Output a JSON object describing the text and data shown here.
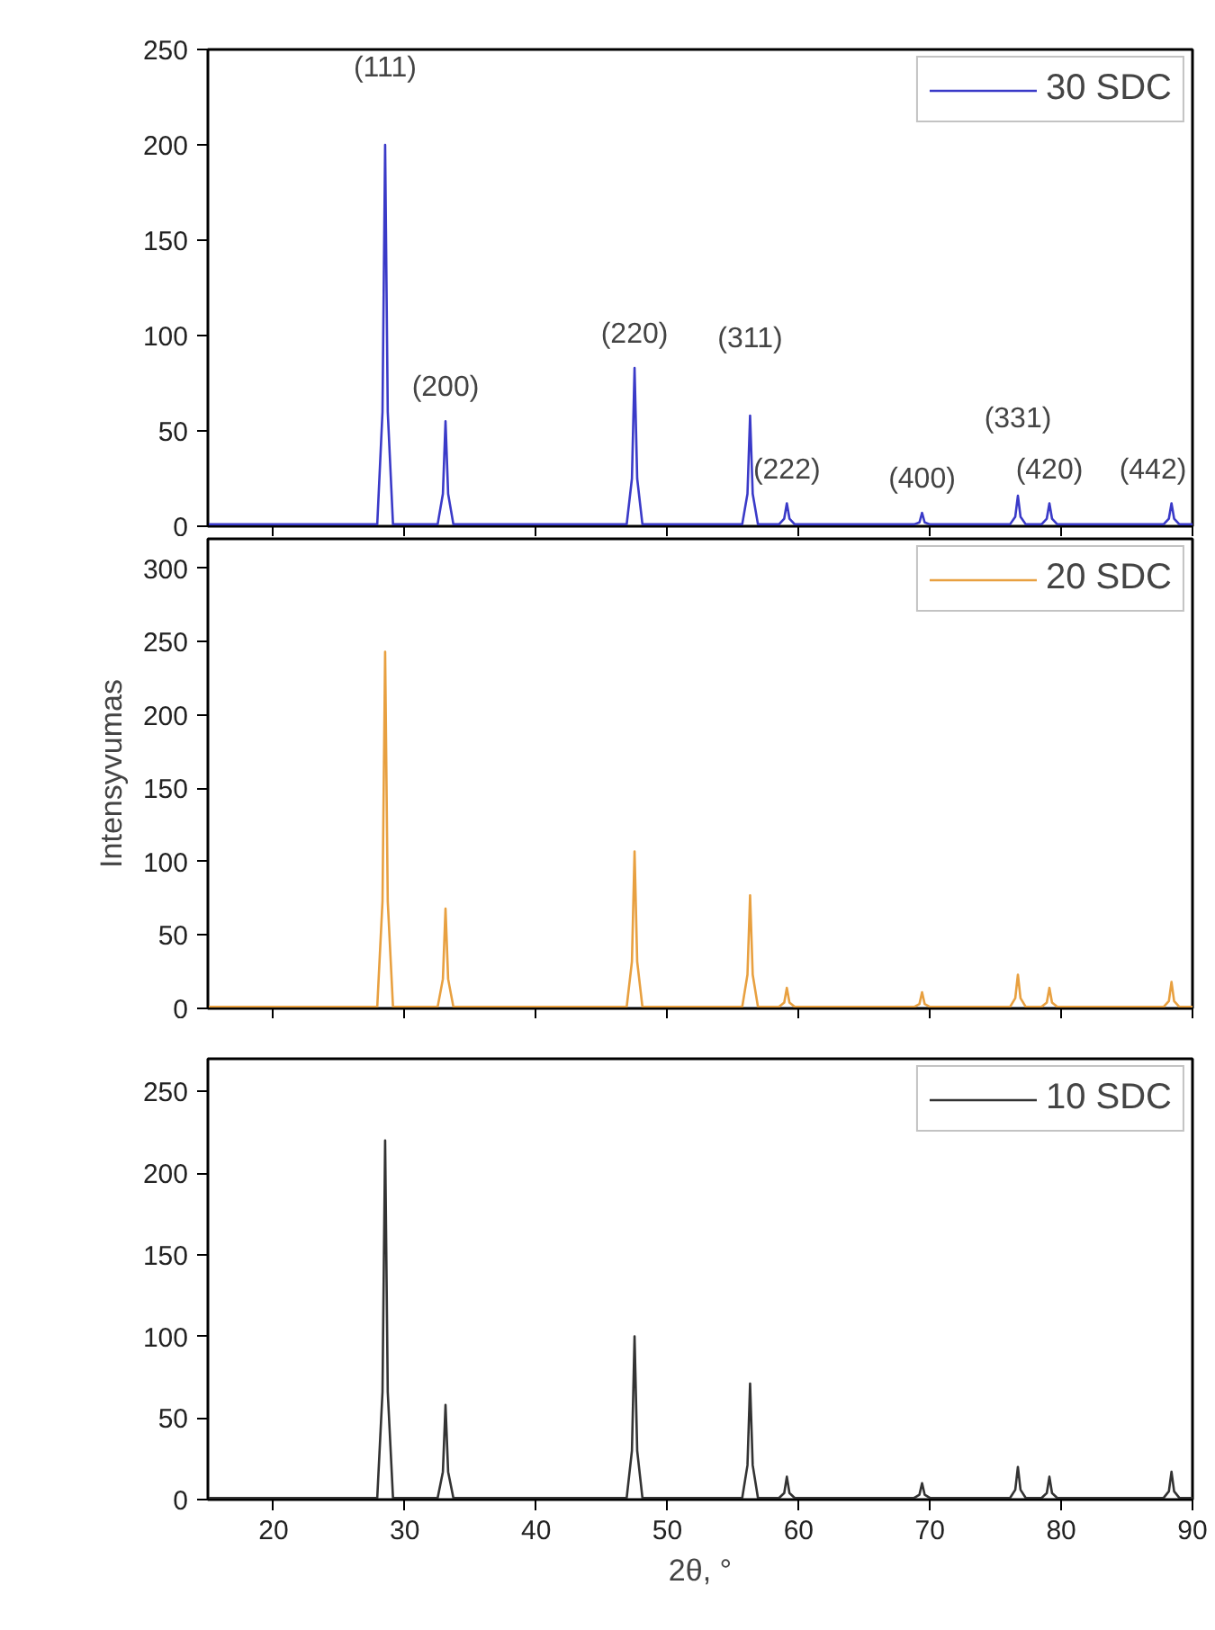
{
  "chart_data": [
    {
      "type": "line",
      "x": [
        15,
        27.9,
        28.3,
        28.5,
        28.7,
        29.1,
        32.5,
        32.9,
        33.1,
        33.3,
        33.7,
        46.9,
        47.3,
        47.5,
        47.7,
        48.1,
        55.7,
        56.1,
        56.3,
        56.5,
        56.9,
        58.5,
        58.9,
        59.1,
        59.3,
        59.7,
        68.8,
        69.2,
        69.4,
        69.6,
        70.0,
        76.1,
        76.5,
        76.7,
        76.9,
        77.3,
        78.5,
        78.9,
        79.1,
        79.3,
        79.7,
        87.8,
        88.2,
        88.4,
        88.6,
        89.0,
        90
      ],
      "series": [
        {
          "name": "30 SDC",
          "color": "#3a3ac8",
          "values": [
            1,
            1,
            60,
            200,
            60,
            1,
            1,
            17,
            55,
            17,
            1,
            1,
            25,
            83,
            25,
            1,
            1,
            17,
            58,
            17,
            1,
            1,
            4,
            12,
            4,
            1,
            1,
            2,
            7,
            2,
            1,
            1,
            5,
            16,
            5,
            1,
            1,
            4,
            12,
            4,
            1,
            1,
            4,
            12,
            4,
            1,
            1
          ]
        }
      ],
      "xlim": [
        15,
        90
      ],
      "xticks": [
        20,
        30,
        40,
        50,
        60,
        70,
        80,
        90
      ],
      "ylim": [
        0,
        250
      ],
      "yticks": [
        0,
        50,
        100,
        150,
        200,
        250
      ],
      "tick_labels": "y",
      "legend": "top right",
      "grid": false,
      "annotations": [
        {
          "text": "(111)",
          "x": 28.5,
          "y": 200
        },
        {
          "text": "(200)",
          "x": 33.1,
          "y": 55
        },
        {
          "text": "(220)",
          "x": 47.5,
          "y": 83
        },
        {
          "text": "(311)",
          "x": 56.3,
          "y": 58
        },
        {
          "text": "(222)",
          "x": 59.1,
          "y": 12
        },
        {
          "text": "(400)",
          "x": 69.4,
          "y": 7
        },
        {
          "text": "(331)",
          "x": 76.7,
          "y": 16
        },
        {
          "text": "(420)",
          "x": 79.1,
          "y": 12
        },
        {
          "text": "(442)",
          "x": 88.4,
          "y": 12
        }
      ]
    },
    {
      "type": "line",
      "x": [
        15,
        27.9,
        28.3,
        28.5,
        28.7,
        29.1,
        32.5,
        32.9,
        33.1,
        33.3,
        33.7,
        46.9,
        47.3,
        47.5,
        47.7,
        48.1,
        55.7,
        56.1,
        56.3,
        56.5,
        56.9,
        58.5,
        58.9,
        59.1,
        59.3,
        59.7,
        68.8,
        69.2,
        69.4,
        69.6,
        70.0,
        76.1,
        76.5,
        76.7,
        76.9,
        77.3,
        78.5,
        78.9,
        79.1,
        79.3,
        79.7,
        87.8,
        88.2,
        88.4,
        88.6,
        89.0,
        90
      ],
      "series": [
        {
          "name": "20 SDC",
          "color": "#e8a040",
          "values": [
            1,
            1,
            73,
            243,
            73,
            1,
            1,
            20,
            68,
            20,
            1,
            1,
            32,
            107,
            32,
            1,
            1,
            23,
            77,
            23,
            1,
            1,
            4,
            14,
            4,
            1,
            1,
            3,
            11,
            3,
            1,
            1,
            7,
            23,
            7,
            1,
            1,
            4,
            14,
            4,
            1,
            1,
            5,
            18,
            5,
            1,
            1
          ]
        }
      ],
      "xlim": [
        15,
        90
      ],
      "xticks": [
        20,
        30,
        40,
        50,
        60,
        70,
        80,
        90
      ],
      "ylim": [
        0,
        320
      ],
      "yticks": [
        0,
        50,
        100,
        150,
        200,
        250,
        300
      ],
      "tick_labels": "y",
      "legend": "top right",
      "grid": false,
      "ylabel": "Intensyvumas"
    },
    {
      "type": "line",
      "x": [
        15,
        27.9,
        28.3,
        28.5,
        28.7,
        29.1,
        32.5,
        32.9,
        33.1,
        33.3,
        33.7,
        46.9,
        47.3,
        47.5,
        47.7,
        48.1,
        55.7,
        56.1,
        56.3,
        56.5,
        56.9,
        58.5,
        58.9,
        59.1,
        59.3,
        59.7,
        68.8,
        69.2,
        69.4,
        69.6,
        70.0,
        76.1,
        76.5,
        76.7,
        76.9,
        77.3,
        78.5,
        78.9,
        79.1,
        79.3,
        79.7,
        87.8,
        88.2,
        88.4,
        88.6,
        89.0,
        90
      ],
      "series": [
        {
          "name": "10 SDC",
          "color": "#333333",
          "values": [
            1,
            1,
            66,
            220,
            66,
            1,
            1,
            17,
            58,
            17,
            1,
            1,
            30,
            100,
            30,
            1,
            1,
            21,
            71,
            21,
            1,
            1,
            4,
            14,
            4,
            1,
            1,
            3,
            10,
            3,
            1,
            1,
            6,
            20,
            6,
            1,
            1,
            4,
            14,
            4,
            1,
            1,
            5,
            17,
            5,
            1,
            1
          ]
        }
      ],
      "xlim": [
        15,
        90
      ],
      "xticks": [
        20,
        30,
        40,
        50,
        60,
        70,
        80,
        90
      ],
      "ylim": [
        0,
        270
      ],
      "yticks": [
        0,
        50,
        100,
        150,
        200,
        250
      ],
      "legend": "top right",
      "grid": false,
      "xlabel": "2θ, °"
    }
  ]
}
